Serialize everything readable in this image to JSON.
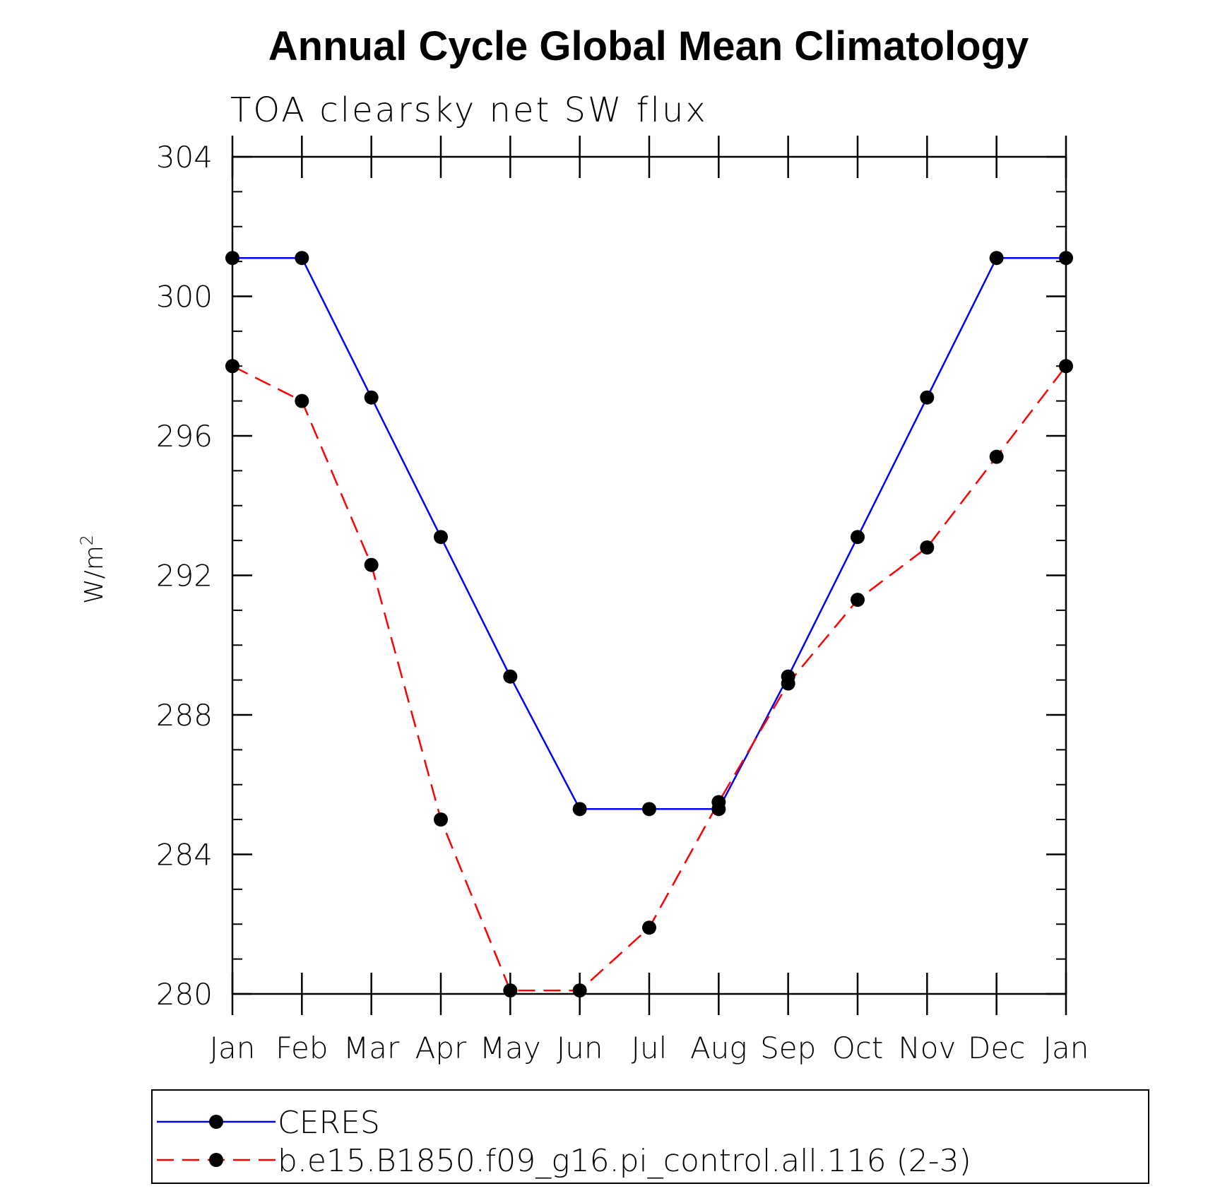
{
  "chart_data": {
    "type": "line",
    "title": "Annual Cycle Global Mean Climatology",
    "subtitle": "TOA clearsky net SW flux",
    "xlabel": "",
    "ylabel_prefix": "W/m",
    "ylabel_sup": "2",
    "categories": [
      "Jan",
      "Feb",
      "Mar",
      "Apr",
      "May",
      "Jun",
      "Jul",
      "Aug",
      "Sep",
      "Oct",
      "Nov",
      "Dec",
      "Jan"
    ],
    "ylim": [
      280,
      304
    ],
    "yticks_major": [
      280,
      284,
      288,
      292,
      296,
      300,
      304
    ],
    "ytick_minor_step": 1,
    "grid": false,
    "legend_position": "bottom",
    "series": [
      {
        "name": "CERES",
        "color": "#0000ff",
        "dash": "solid",
        "values": [
          301.1,
          301.1,
          297.1,
          293.1,
          289.1,
          285.3,
          285.3,
          285.3,
          289.1,
          293.1,
          297.1,
          301.1,
          301.1
        ]
      },
      {
        "name": "b.e15.B1850.f09_g16.pi_control.all.116 (2-3)",
        "color": "#ff0000",
        "dash": "dashed",
        "values": [
          298.0,
          297.0,
          292.3,
          285.0,
          280.1,
          280.1,
          281.9,
          285.5,
          288.9,
          291.3,
          292.8,
          295.4,
          298.0
        ]
      }
    ]
  }
}
